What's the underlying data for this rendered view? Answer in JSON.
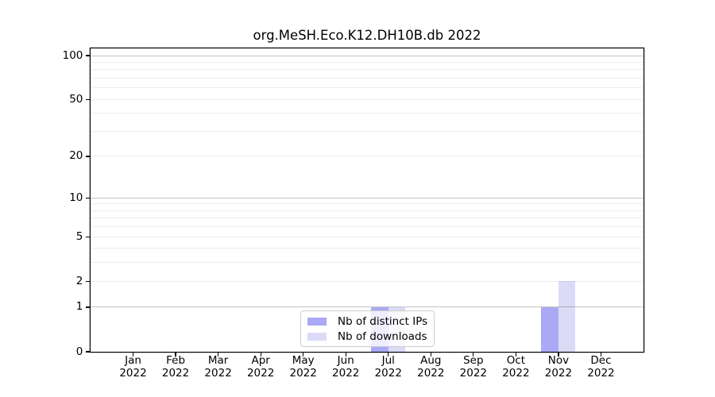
{
  "chart_data": {
    "type": "bar",
    "title": "org.MeSH.Eco.K12.DH10B.db 2022",
    "x": {
      "categories": [
        "Jan",
        "Feb",
        "Mar",
        "Apr",
        "May",
        "Jun",
        "Jul",
        "Aug",
        "Sep",
        "Oct",
        "Nov",
        "Dec"
      ],
      "year": "2022"
    },
    "series": [
      {
        "name": "Nb of distinct IPs",
        "color": "#a9a9f5",
        "values": [
          0,
          0,
          0,
          0,
          0,
          0,
          1,
          0,
          0,
          0,
          1,
          0
        ]
      },
      {
        "name": "Nb of downloads",
        "color": "#dbdbf8",
        "values": [
          0,
          0,
          0,
          0,
          0,
          0,
          1,
          0,
          0,
          0,
          2,
          0
        ]
      }
    ],
    "y_axis": {
      "scale": "log10(1+y)",
      "ticks": [
        0,
        1,
        2,
        5,
        10,
        20,
        50,
        100
      ],
      "ylim": [
        0,
        112
      ],
      "grid_major": [
        1,
        10,
        100
      ],
      "grid_minor": [
        2,
        3,
        4,
        5,
        6,
        7,
        8,
        9,
        20,
        30,
        40,
        50,
        60,
        70,
        80,
        90
      ]
    },
    "legend": {
      "position": "inside-bottom-center"
    },
    "colors": {
      "frame": "#000000",
      "grid_major": "#c3c3c3",
      "grid_minor": "#ebebeb",
      "background": "#ffffff"
    }
  }
}
